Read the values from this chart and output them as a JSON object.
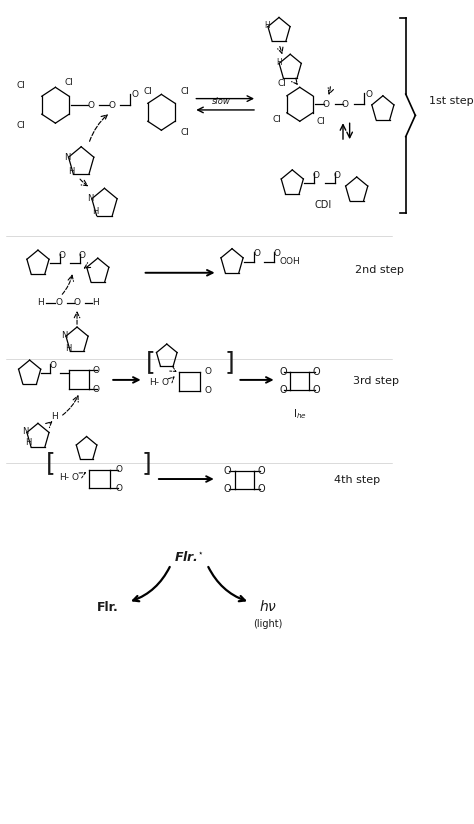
{
  "fig_width": 4.74,
  "fig_height": 8.24,
  "dpi": 100,
  "background_color": "#ffffff",
  "text_color": "#1a1a1a",
  "steps": [
    "1st step",
    "2nd step",
    "3rd step",
    "4th step"
  ],
  "step_fontsize": 8,
  "structure_fontsize": 6.5,
  "ring_lw": 0.9,
  "arrow_lw": 1.4
}
